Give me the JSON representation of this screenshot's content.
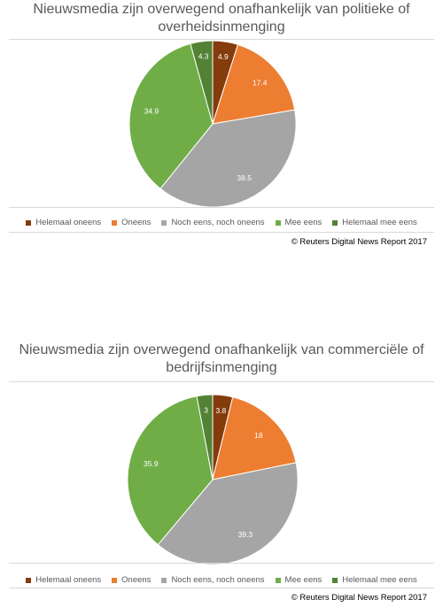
{
  "chart_data": [
    {
      "type": "pie",
      "title": "Nieuwsmedia zijn overwegend onafhankelijk van politieke of overheidsinmenging",
      "categories": [
        "Helemaal oneens",
        "Oneens",
        "Noch eens, noch oneens",
        "Mee eens",
        "Helemaal mee eens"
      ],
      "values": [
        4.9,
        17.4,
        38.5,
        34.9,
        4.3
      ],
      "colors": [
        "#843c0c",
        "#ed7d31",
        "#a5a5a5",
        "#70ad47",
        "#548235"
      ],
      "legend": "bottom",
      "source": "© Reuters Digital News Report 2017"
    },
    {
      "type": "pie",
      "title": "Nieuwsmedia zijn overwegend onafhankelijk van commerciële of bedrijfsinmenging",
      "categories": [
        "Helemaal oneens",
        "Oneens",
        "Noch eens, noch oneens",
        "Mee eens",
        "Helemaal mee eens"
      ],
      "values": [
        3.8,
        18,
        39.3,
        35.9,
        3
      ],
      "colors": [
        "#843c0c",
        "#ed7d31",
        "#a5a5a5",
        "#70ad47",
        "#548235"
      ],
      "legend": "bottom",
      "source": "© Reuters Digital News Report 2017"
    }
  ]
}
